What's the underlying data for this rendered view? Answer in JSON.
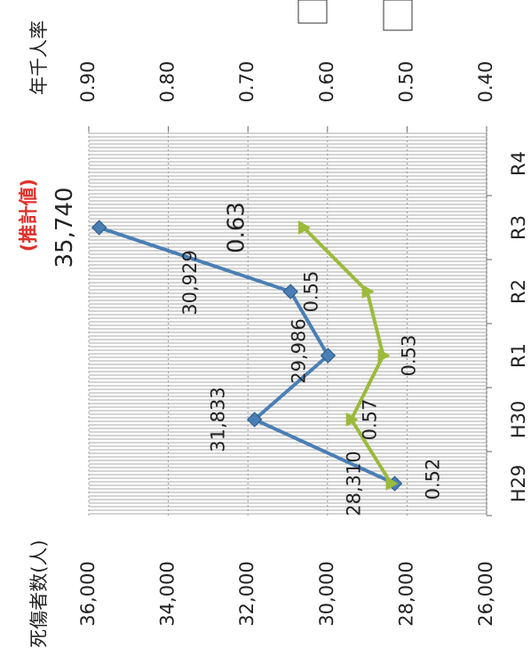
{
  "chart_data": {
    "type": "line",
    "y_label": "死傷者数(人)",
    "y2_label": "年千人率",
    "annotation": "(推計値)",
    "categories": [
      "H29",
      "H30",
      "R1",
      "R2",
      "R3",
      "R4"
    ],
    "series": [
      {
        "name": "死傷者数",
        "color": "#4a7fb5",
        "values": [
          28310,
          31833,
          29986,
          30929,
          35740,
          null
        ],
        "value_labels": [
          "28,310",
          "31,833",
          "29,986",
          "30,929",
          "35,740",
          null
        ]
      },
      {
        "name": "年千人率",
        "color": "#9bbb3b",
        "axis": "y2",
        "values": [
          0.52,
          0.57,
          0.53,
          0.55,
          0.63,
          null
        ]
      }
    ],
    "ylim": [
      26000,
      36000
    ],
    "yticks": [
      {
        "value": 26000,
        "label": "26,000"
      },
      {
        "value": 28000,
        "label": "28,000"
      },
      {
        "value": 30000,
        "label": "30,000"
      },
      {
        "value": 32000,
        "label": "32,000"
      },
      {
        "value": 34000,
        "label": "34,000"
      },
      {
        "value": 36000,
        "label": "36,000"
      }
    ],
    "y2lim": [
      0.4,
      0.9
    ],
    "y2ticks": [
      {
        "value": 0.4,
        "label": "0.40"
      },
      {
        "value": 0.5,
        "label": "0.50"
      },
      {
        "value": 0.6,
        "label": "0.60"
      },
      {
        "value": 0.7,
        "label": "0.70"
      },
      {
        "value": 0.8,
        "label": "0.80"
      },
      {
        "value": 0.9,
        "label": "0.90"
      }
    ],
    "grid": true
  }
}
